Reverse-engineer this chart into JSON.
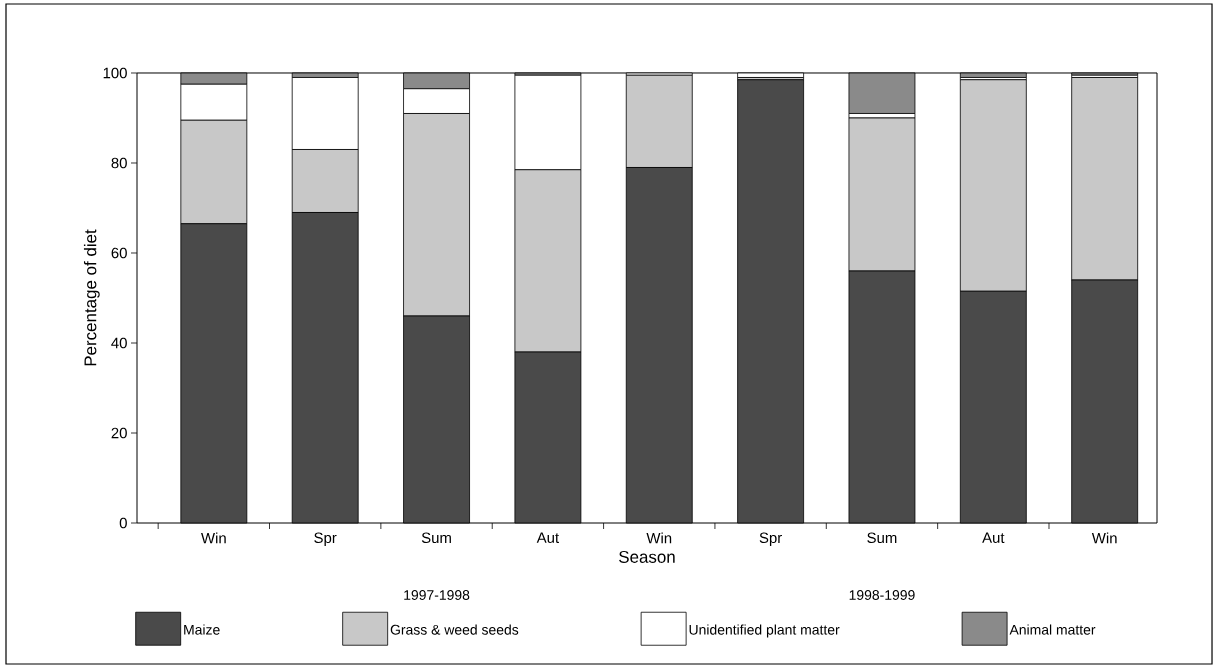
{
  "chart_data": {
    "type": "bar",
    "stacked": true,
    "xlabel": "Season",
    "ylabel": "Percentage of diet",
    "categories": [
      "Win",
      "Spr",
      "Sum",
      "Aut",
      "Win",
      "Spr",
      "Sum",
      "Aut",
      "Win"
    ],
    "series": [
      {
        "name": "Maize",
        "color": "#4a4a4a",
        "values": [
          66.5,
          69,
          46,
          38,
          79,
          98.5,
          56,
          51.5,
          54
        ]
      },
      {
        "name": "Grass & weed seeds",
        "color": "#c8c8c8",
        "values": [
          23,
          14,
          45,
          40.5,
          20.5,
          0.5,
          34,
          47,
          45
        ]
      },
      {
        "name": "Unidentified plant matter",
        "color": "#ffffff",
        "values": [
          8,
          16,
          5.5,
          21,
          0.5,
          1,
          1,
          0.5,
          0.5
        ]
      },
      {
        "name": "Animal matter",
        "color": "#8a8a8a",
        "values": [
          2.5,
          1,
          3.5,
          0.5,
          0,
          0,
          9,
          1,
          0.5
        ]
      }
    ],
    "ylim": [
      0,
      100
    ],
    "yticks": [
      0,
      20,
      40,
      60,
      80,
      100
    ],
    "legend": "bottom",
    "annotations": [
      "1997-1998",
      "1998-1999"
    ]
  }
}
